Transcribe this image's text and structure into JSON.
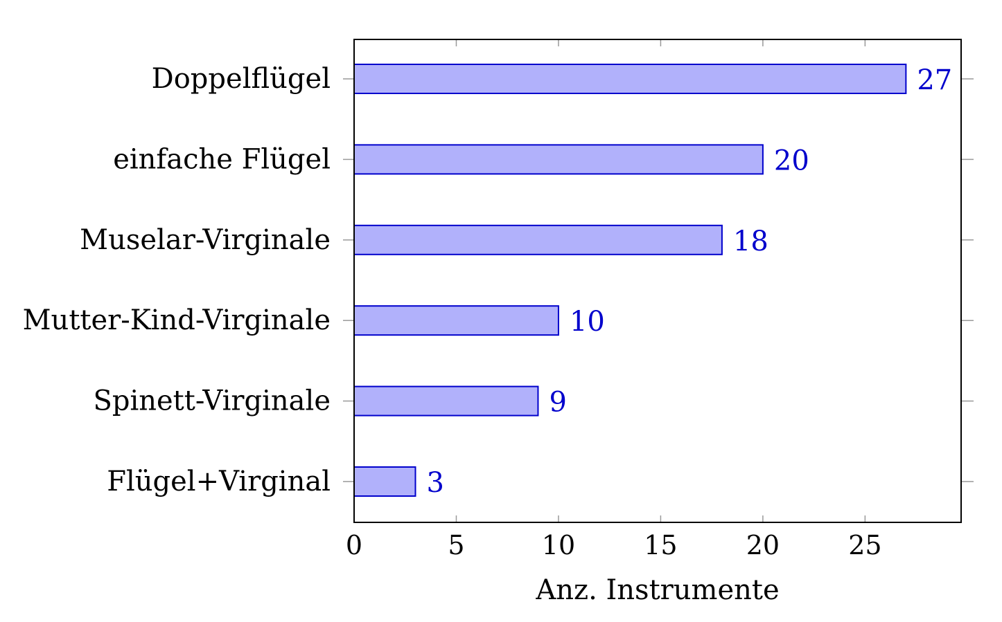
{
  "chart_data": {
    "type": "bar",
    "orientation": "horizontal",
    "categories": [
      "Doppelflügel",
      "einfache Flügel",
      "Muselar-Virginale",
      "Mutter-Kind-Virginale",
      "Spinett-Virginale",
      "Flügel+Virginal"
    ],
    "values": [
      27,
      20,
      18,
      10,
      9,
      3
    ],
    "data_labels": [
      "27",
      "20",
      "18",
      "10",
      "9",
      "3"
    ],
    "title": "",
    "xlabel": "Anz. Instrumente",
    "ylabel": "",
    "xlim": [
      0,
      29.7
    ],
    "xticks": [
      0,
      5,
      10,
      15,
      20,
      25
    ],
    "xtick_labels": [
      "0",
      "5",
      "10",
      "15",
      "20",
      "25"
    ],
    "grid": false,
    "legend": "none",
    "colors": {
      "bar_fill": "#b1b1fb",
      "bar_stroke": "#0000cc",
      "data_label": "#0000cc",
      "axis": "#000000",
      "tick": "#999999"
    }
  }
}
